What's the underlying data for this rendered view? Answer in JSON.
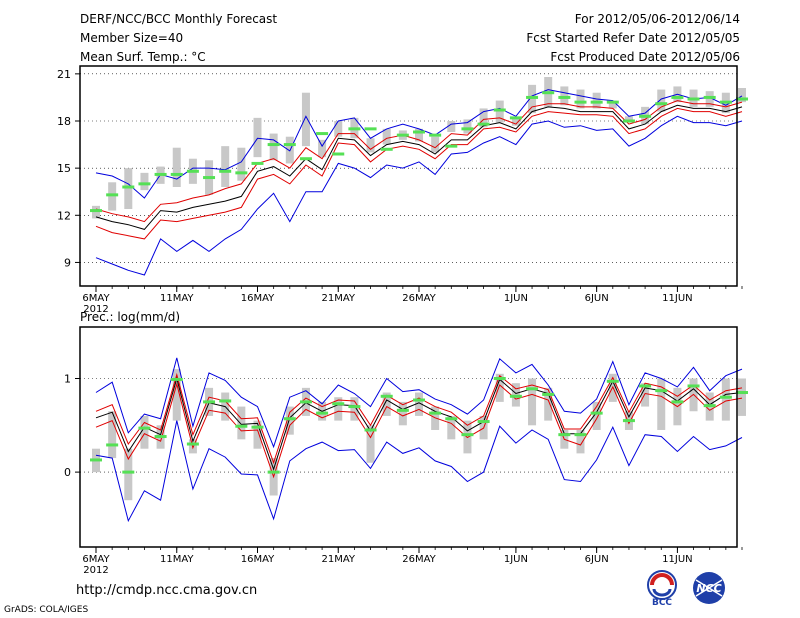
{
  "header": {
    "title": "DERF/NCC/BCC Monthly Forecast",
    "member_size": "Member Size=40",
    "variable": "Mean Surf. Temp.: °C",
    "period": "For 2012/05/06-2012/06/14",
    "started": "Fcst Started Refer Date 2012/05/05",
    "produced": "Fcst Produced Date 2012/05/06"
  },
  "footer": {
    "url": "http://cmdp.ncc.cma.gov.cn",
    "grads": "GrADS: COLA/IGES",
    "logo1_text": "BCC",
    "logo2_text": "NCC"
  },
  "colors": {
    "grey_box": "#c8c8c8",
    "green_mark": "#55e055",
    "black_line": "#000000",
    "red_line": "#e00000",
    "blue_line": "#0000dd",
    "grid": "#000000"
  },
  "chart_data": [
    {
      "type": "line",
      "title": "Mean Surf. Temp.: °C",
      "x_tick_labels": [
        "6MAY\n2012",
        "11MAY",
        "16MAY",
        "21MAY",
        "26MAY",
        "1JUN",
        "6JUN",
        "11JUN"
      ],
      "x_tick_days": [
        0,
        5,
        10,
        15,
        20,
        26,
        31,
        36
      ],
      "ylim": [
        7.5,
        21.5
      ],
      "y_ticks": [
        9,
        12,
        15,
        18,
        21
      ],
      "series": [
        {
          "name": "ensemble mean",
          "color": "black",
          "values": [
            11.9,
            11.6,
            11.4,
            11.1,
            12.3,
            12.2,
            12.5,
            12.7,
            12.9,
            13.2,
            14.8,
            15.1,
            14.5,
            15.6,
            14.9,
            16.9,
            16.8,
            15.8,
            16.5,
            16.7,
            16.5,
            15.9,
            16.8,
            16.8,
            17.7,
            17.9,
            17.5,
            18.6,
            18.9,
            18.8,
            18.6,
            18.6,
            18.6,
            17.5,
            17.8,
            18.6,
            19.0,
            18.8,
            18.8,
            18.6,
            18.9
          ]
        },
        {
          "name": "upper spread",
          "color": "red",
          "values": [
            12.4,
            12.1,
            11.9,
            11.6,
            12.7,
            12.8,
            13.1,
            13.3,
            13.7,
            14.0,
            15.3,
            15.6,
            15.0,
            16.3,
            15.6,
            17.2,
            17.2,
            16.2,
            16.9,
            17.1,
            16.8,
            16.3,
            17.2,
            17.1,
            18.1,
            18.2,
            17.8,
            18.9,
            19.1,
            19.1,
            18.9,
            18.9,
            18.8,
            17.8,
            18.1,
            18.9,
            19.3,
            19.1,
            19.1,
            18.9,
            19.2
          ]
        },
        {
          "name": "lower spread",
          "color": "red",
          "values": [
            11.3,
            10.9,
            10.7,
            10.5,
            11.7,
            11.6,
            11.8,
            12.0,
            12.2,
            12.5,
            14.3,
            14.6,
            14.0,
            15.2,
            14.5,
            16.6,
            16.5,
            15.4,
            16.2,
            16.4,
            16.2,
            15.6,
            16.5,
            16.5,
            17.5,
            17.6,
            17.3,
            18.3,
            18.6,
            18.5,
            18.4,
            18.4,
            18.3,
            17.2,
            17.5,
            18.3,
            18.8,
            18.6,
            18.6,
            18.3,
            18.6
          ]
        },
        {
          "name": "maximum",
          "color": "blue",
          "values": [
            14.7,
            14.5,
            14.0,
            13.1,
            14.6,
            14.3,
            15.0,
            15.0,
            14.9,
            15.4,
            16.9,
            16.8,
            16.1,
            18.3,
            16.4,
            18.0,
            18.2,
            16.9,
            17.5,
            17.8,
            17.5,
            17.1,
            17.8,
            17.9,
            18.6,
            18.8,
            18.3,
            19.6,
            20.0,
            19.8,
            19.6,
            19.4,
            19.3,
            18.3,
            18.5,
            19.4,
            19.7,
            19.4,
            19.5,
            19.0,
            19.6
          ]
        },
        {
          "name": "minimum",
          "color": "blue",
          "values": [
            9.3,
            8.9,
            8.5,
            8.2,
            10.5,
            9.7,
            10.4,
            9.7,
            10.5,
            11.1,
            12.4,
            13.4,
            11.6,
            13.5,
            13.5,
            15.3,
            15.0,
            14.4,
            15.2,
            15.0,
            15.4,
            14.6,
            15.9,
            16.0,
            16.6,
            17.0,
            16.5,
            17.8,
            18.0,
            17.6,
            17.7,
            17.4,
            17.5,
            16.4,
            16.9,
            17.7,
            18.3,
            17.9,
            17.9,
            17.7,
            18.0
          ]
        }
      ],
      "boxes": {
        "low": [
          11.8,
          12.3,
          12.4,
          13.6,
          14.0,
          13.8,
          14.0,
          13.3,
          13.8,
          14.2,
          15.7,
          15.5,
          15.3,
          16.4,
          15.7,
          17.0,
          16.9,
          16.0,
          16.5,
          16.8,
          16.7,
          16.0,
          17.3,
          17.2,
          17.6,
          17.9,
          17.7,
          18.5,
          18.9,
          19.0,
          18.8,
          18.8,
          18.8,
          17.9,
          17.8,
          18.6,
          19.2,
          18.9,
          18.9,
          18.5,
          19.2
        ],
        "high": [
          12.6,
          14.1,
          15.0,
          14.7,
          15.1,
          16.3,
          15.6,
          15.5,
          16.4,
          16.3,
          18.2,
          17.2,
          17.0,
          19.8,
          16.8,
          18.0,
          18.2,
          16.9,
          17.5,
          17.4,
          17.5,
          17.0,
          18.0,
          18.1,
          18.8,
          19.3,
          18.2,
          20.3,
          20.8,
          20.2,
          20.0,
          19.8,
          19.3,
          18.3,
          18.9,
          20.0,
          20.2,
          20.0,
          19.9,
          19.8,
          20.1
        ]
      },
      "green_marks": [
        12.3,
        13.3,
        13.8,
        14.0,
        14.6,
        14.6,
        14.8,
        14.4,
        14.8,
        14.7,
        15.3,
        16.5,
        16.5,
        15.6,
        17.2,
        15.9,
        17.5,
        17.5,
        16.2,
        17.1,
        17.3,
        17.1,
        16.4,
        17.5,
        17.8,
        18.7,
        18.2,
        19.5,
        19.8,
        19.5,
        19.2,
        19.2,
        19.2,
        18.0,
        18.3,
        19.1,
        19.5,
        19.4,
        19.5,
        19.2,
        19.4
      ]
    },
    {
      "type": "line",
      "title": "Prec.: log(mm/d)",
      "x_tick_labels": [
        "6MAY\n2012",
        "11MAY",
        "16MAY",
        "21MAY",
        "26MAY",
        "1JUN",
        "6JUN",
        "11JUN"
      ],
      "x_tick_days": [
        0,
        5,
        10,
        15,
        20,
        26,
        31,
        36
      ],
      "ylim": [
        -0.8,
        1.55
      ],
      "y_ticks": [
        0,
        1
      ],
      "series": [
        {
          "name": "ensemble mean",
          "color": "black",
          "values": [
            0.58,
            0.64,
            0.22,
            0.48,
            0.4,
            1.0,
            0.33,
            0.74,
            0.7,
            0.51,
            0.52,
            0.03,
            0.58,
            0.74,
            0.65,
            0.72,
            0.71,
            0.44,
            0.77,
            0.67,
            0.74,
            0.65,
            0.59,
            0.44,
            0.54,
            0.99,
            0.84,
            0.89,
            0.84,
            0.41,
            0.41,
            0.64,
            0.97,
            0.59,
            0.9,
            0.87,
            0.76,
            0.89,
            0.72,
            0.83,
            0.85
          ]
        },
        {
          "name": "upper spread",
          "color": "red",
          "values": [
            0.65,
            0.72,
            0.3,
            0.53,
            0.45,
            1.04,
            0.4,
            0.8,
            0.76,
            0.57,
            0.58,
            0.1,
            0.64,
            0.79,
            0.7,
            0.77,
            0.76,
            0.5,
            0.82,
            0.72,
            0.79,
            0.7,
            0.64,
            0.5,
            0.6,
            1.03,
            0.89,
            0.93,
            0.88,
            0.46,
            0.46,
            0.7,
            1.01,
            0.64,
            0.95,
            0.91,
            0.81,
            0.93,
            0.77,
            0.87,
            0.9
          ]
        },
        {
          "name": "lower spread",
          "color": "red",
          "values": [
            0.48,
            0.55,
            0.14,
            0.41,
            0.33,
            0.94,
            0.26,
            0.66,
            0.63,
            0.44,
            0.45,
            -0.05,
            0.5,
            0.67,
            0.58,
            0.65,
            0.64,
            0.37,
            0.7,
            0.6,
            0.67,
            0.58,
            0.52,
            0.37,
            0.47,
            0.93,
            0.78,
            0.83,
            0.77,
            0.35,
            0.29,
            0.57,
            0.91,
            0.52,
            0.84,
            0.81,
            0.7,
            0.83,
            0.66,
            0.76,
            0.79
          ]
        },
        {
          "name": "maximum",
          "color": "blue",
          "values": [
            0.85,
            0.96,
            0.42,
            0.62,
            0.57,
            1.22,
            0.49,
            1.06,
            0.98,
            0.8,
            0.7,
            0.27,
            0.8,
            0.87,
            0.73,
            0.93,
            0.84,
            0.7,
            1.0,
            0.86,
            0.88,
            0.78,
            0.72,
            0.62,
            0.77,
            1.21,
            1.06,
            1.15,
            0.93,
            0.65,
            0.63,
            0.78,
            1.18,
            0.72,
            1.06,
            1.0,
            0.91,
            1.12,
            0.87,
            1.03,
            1.1
          ]
        },
        {
          "name": "minimum",
          "color": "blue",
          "values": [
            0.18,
            0.15,
            -0.52,
            -0.2,
            -0.3,
            0.55,
            -0.18,
            0.25,
            0.16,
            -0.02,
            -0.03,
            -0.5,
            0.12,
            0.25,
            0.32,
            0.23,
            0.24,
            0.04,
            0.32,
            0.2,
            0.26,
            0.12,
            0.06,
            -0.1,
            0.0,
            0.49,
            0.31,
            0.45,
            0.35,
            -0.08,
            -0.1,
            0.13,
            0.48,
            0.07,
            0.4,
            0.38,
            0.22,
            0.38,
            0.24,
            0.28,
            0.37
          ]
        }
      ],
      "boxes": {
        "low": [
          0.0,
          0.15,
          -0.3,
          0.25,
          0.25,
          0.55,
          0.2,
          0.6,
          0.55,
          0.35,
          0.25,
          -0.25,
          0.4,
          0.6,
          0.55,
          0.55,
          0.55,
          0.1,
          0.6,
          0.5,
          0.6,
          0.45,
          0.35,
          0.2,
          0.35,
          0.75,
          0.7,
          0.5,
          0.55,
          0.25,
          0.2,
          0.45,
          0.75,
          0.45,
          0.7,
          0.45,
          0.5,
          0.65,
          0.55,
          0.55,
          0.6
        ],
        "high": [
          0.25,
          0.65,
          0.25,
          0.6,
          0.5,
          1.1,
          0.35,
          0.9,
          0.85,
          0.7,
          0.55,
          0.15,
          0.7,
          0.9,
          0.75,
          0.8,
          0.8,
          0.5,
          0.85,
          0.75,
          0.85,
          0.7,
          0.6,
          0.55,
          0.6,
          1.05,
          0.95,
          1.0,
          0.9,
          0.45,
          0.45,
          0.75,
          1.05,
          0.65,
          0.95,
          1.0,
          0.9,
          1.0,
          0.85,
          1.0,
          1.0
        ]
      },
      "green_marks": [
        0.13,
        0.29,
        0.0,
        0.47,
        0.38,
        0.99,
        0.3,
        0.75,
        0.76,
        0.49,
        0.48,
        0.0,
        0.57,
        0.75,
        0.63,
        0.73,
        0.7,
        0.45,
        0.81,
        0.66,
        0.77,
        0.63,
        0.57,
        0.4,
        0.54,
        1.0,
        0.81,
        0.89,
        0.83,
        0.4,
        0.4,
        0.63,
        0.97,
        0.55,
        0.92,
        0.87,
        0.75,
        0.92,
        0.71,
        0.8,
        0.85
      ]
    }
  ]
}
